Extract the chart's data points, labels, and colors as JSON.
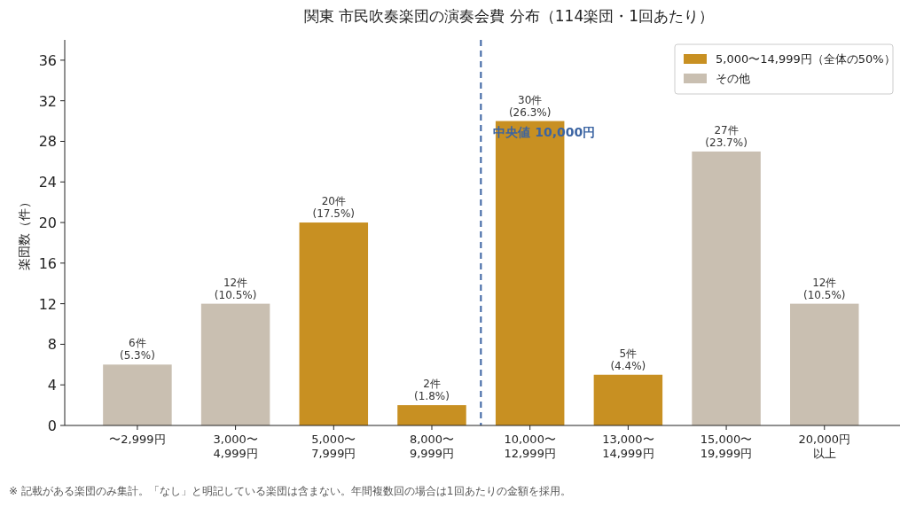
{
  "chart_data": {
    "type": "bar",
    "title": "関東 市民吹奏楽団の演奏会費 分布（114楽団・1回あたり）",
    "ylabel": "楽団数（件）",
    "categories": [
      "〜2,999円",
      "3,000〜\n4,999円",
      "5,000〜\n7,999円",
      "8,000〜\n9,999円",
      "10,000〜\n12,999円",
      "13,000〜\n14,999円",
      "15,000〜\n19,999円",
      "20,000円以上"
    ],
    "series": [
      {
        "name": "5,000〜14,999円（全体の50%）",
        "color": "#c89022",
        "values": [
          null,
          null,
          20,
          2,
          30,
          5,
          null,
          null
        ],
        "value_labels": [
          null,
          null,
          "20件\n(17.5%)",
          "2件\n(1.8%)",
          "30件\n(26.3%)",
          "5件\n(4.4%)",
          null,
          null
        ]
      },
      {
        "name": "その他",
        "color": "#c9bfb1",
        "values": [
          6,
          12,
          null,
          null,
          null,
          null,
          27,
          12
        ],
        "value_labels": [
          "6件\n(5.3%)",
          "12件\n(10.5%)",
          null,
          null,
          null,
          null,
          "27件\n(23.7%)",
          "12件\n(10.5%)"
        ]
      }
    ],
    "ylim": [
      0,
      38
    ],
    "yticks": [
      0,
      4,
      8,
      12,
      16,
      20,
      24,
      28,
      32,
      36
    ],
    "grid": false,
    "legend": "top right",
    "ref_lines": [
      {
        "axis": "x",
        "value": "10,000〜\n12,999円",
        "label": "中央値 10,000円",
        "color": "#3b64a2",
        "line_style": "dashed"
      }
    ],
    "annotations": [
      "※ 記載がある楽団のみ集計。「なし」と明記している楽団は含まない。年間複数回の場合は1回あたりの金額を採用。"
    ]
  }
}
